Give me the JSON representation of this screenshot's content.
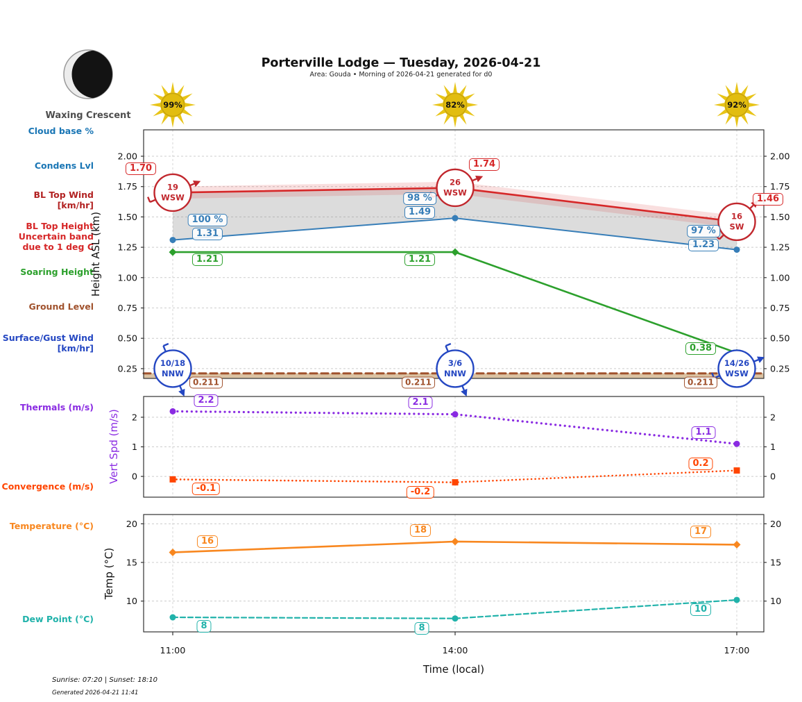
{
  "header": {
    "title": "Porterville Lodge — Tuesday, 2026-04-21",
    "subtitle": "Area: Gouda • Morning of 2026-04-21 generated for d0"
  },
  "moon": {
    "label": "Waxing Crescent"
  },
  "axes": {
    "height_label": "Height ASL (km)",
    "vert_label": "Vert Spd (m/s)",
    "temp_label": "Temp (°C)",
    "time_label": "Time (local)"
  },
  "footer": {
    "sun_times": "Sunrise: 07:20 | Sunset: 18:10",
    "generated": "Generated 2026-04-21 11:41"
  },
  "colors": {
    "condens_blue": "#377eb8",
    "bl_red": "#d62728",
    "bl_wind_red": "#c1272d",
    "dark_red_label": "#b22222",
    "green": "#2ca02c",
    "brown": "#a0522d",
    "ground_tan": "rgba(210,180,140,0.8)",
    "surface_wind_blue": "#2447c2",
    "purple": "#8a2be2",
    "orangered": "#ff4500",
    "orange": "#f8871f",
    "teal": "#20b2aa",
    "sun_gold": "#e8c417",
    "grid": "#cccccc"
  },
  "sidebar_labels": [
    {
      "id": "cloud-base-pct",
      "text": "Cloud base %",
      "color": "#1a76b5"
    },
    {
      "id": "condens-lvl",
      "text": "Condens Lvl",
      "color": "#1a76b5"
    },
    {
      "id": "bl-top-wind",
      "text": "BL Top Wind\n[km/hr]",
      "color": "#b22222"
    },
    {
      "id": "bl-top-height",
      "text": "BL Top Height\nUncertain band\ndue to 1 deg C",
      "color": "#d62728"
    },
    {
      "id": "soaring-height",
      "text": "Soaring Height",
      "color": "#2ca02c"
    },
    {
      "id": "ground-level",
      "text": "Ground Level",
      "color": "#a0522d"
    },
    {
      "id": "surface-gust-wind",
      "text": "Surface/Gust Wind\n[km/hr]",
      "color": "#2447c2"
    },
    {
      "id": "thermals",
      "text": "Thermals (m/s)",
      "color": "#8a2be2"
    },
    {
      "id": "convergence",
      "text": "Convergence (m/s)",
      "color": "#ff4500"
    },
    {
      "id": "temperature",
      "text": "Temperature (°C)",
      "color": "#f8871f"
    },
    {
      "id": "dew-point",
      "text": "Dew Point (°C)",
      "color": "#20b2aa"
    }
  ],
  "chart_data": [
    {
      "id": "height-panel",
      "type": "line",
      "x": [
        "11:00",
        "14:00",
        "17:00"
      ],
      "ylabel": "Height ASL (km)",
      "yticks": [
        "2.00",
        "1.75",
        "1.50",
        "1.25",
        "1.00",
        "0.75",
        "0.50",
        "0.25"
      ],
      "grid": true,
      "series": [
        {
          "name": "BL Top Height",
          "color": "#d62728",
          "line": "solid",
          "marker": "none",
          "width": 2.6,
          "values": [
            1.7,
            1.74,
            1.46
          ],
          "point_labels": [
            "1.70",
            "1.74",
            "1.46"
          ],
          "label_offsets": [
            [
              -46,
              -34
            ],
            [
              42,
              -33
            ],
            [
              45,
              -32
            ]
          ],
          "uncertainty_band": 0.05,
          "band_color": "rgba(214,39,40,0.15)"
        },
        {
          "name": "Condens Lvl",
          "color": "#377eb8",
          "line": "solid",
          "marker": "circle",
          "width": 2.0,
          "values": [
            1.31,
            1.49,
            1.23
          ],
          "point_labels": [
            "1.31",
            "1.49",
            "1.23"
          ],
          "label_offsets": [
            [
              50,
              -9
            ],
            [
              -51,
              -8
            ],
            [
              -48,
              -7
            ]
          ],
          "pct_labels": [
            "100 %",
            "98 %",
            "97 %"
          ],
          "pct_offsets": [
            [
              50,
              -29
            ],
            [
              -51,
              -28
            ],
            [
              -48,
              -27
            ]
          ]
        },
        {
          "name": "Soaring Height",
          "color": "#2ca02c",
          "line": "solid",
          "marker": "diamond",
          "width": 2.6,
          "values": [
            1.21,
            1.21,
            0.38
          ],
          "point_labels": [
            "1.21",
            "1.21",
            "0.38"
          ],
          "label_offsets": [
            [
              50,
              11
            ],
            [
              -51,
              11
            ],
            [
              -52,
              -6
            ]
          ]
        },
        {
          "name": "Ground Level",
          "color": "#a0522d",
          "line": "dashed",
          "marker": "none",
          "width": 3.0,
          "values": [
            0.211,
            0.211,
            0.211
          ],
          "full_width": true,
          "fill_below": "rgba(210,180,140,0.8)",
          "point_labels": [
            "0.211",
            "0.211",
            "0.211"
          ],
          "label_offsets": [
            [
              48,
              13
            ],
            [
              -53,
              13
            ],
            [
              -52,
              13
            ]
          ],
          "small_labels": true
        }
      ],
      "fill_between": {
        "upper": "BL Top Height",
        "lower": "Condens Lvl",
        "color": "rgba(128,128,128,0.28)"
      },
      "wind_markers": [
        {
          "name": "BL Top Wind [km/hr]",
          "color": "#c1272d",
          "anchor_values": [
            1.7,
            1.74,
            1.46
          ],
          "points": [
            {
              "speed": "19",
              "dir": "WSW"
            },
            {
              "speed": "26",
              "dir": "WSW"
            },
            {
              "speed": "16",
              "dir": "SW"
            }
          ]
        },
        {
          "name": "Surface/Gust Wind [km/hr]",
          "color": "#2447c2",
          "anchor_values": [
            0.25,
            0.25,
            0.25
          ],
          "points": [
            {
              "speed": "10/18",
              "dir": "NNW"
            },
            {
              "speed": "3/6",
              "dir": "NNW"
            },
            {
              "speed": "14/26",
              "dir": "WSW"
            }
          ]
        }
      ],
      "sun_icons": {
        "color": "#e8c417",
        "labels": [
          "99%",
          "82%",
          "92%"
        ]
      }
    },
    {
      "id": "vertspd-panel",
      "type": "line",
      "x": [
        "11:00",
        "14:00",
        "17:00"
      ],
      "ylabel": "Vert Spd (m/s)",
      "yticks": [
        "2",
        "1",
        "0"
      ],
      "grid": true,
      "series": [
        {
          "name": "Thermals",
          "color": "#8a2be2",
          "line": "dotted",
          "marker": "circle",
          "width": 3.2,
          "values": [
            2.2,
            2.1,
            1.1
          ],
          "point_labels": [
            "2.2",
            "2.1",
            "1.1"
          ],
          "label_offsets": [
            [
              48,
              -15
            ],
            [
              -50,
              -17
            ],
            [
              -48,
              -16
            ]
          ]
        },
        {
          "name": "Convergence",
          "color": "#ff4500",
          "line": "dotted",
          "marker": "square",
          "width": 2.6,
          "values": [
            -0.1,
            -0.2,
            0.2
          ],
          "point_labels": [
            "-0.1",
            "-0.2",
            "0.2"
          ],
          "label_offsets": [
            [
              48,
              14
            ],
            [
              -50,
              14
            ],
            [
              -52,
              -10
            ]
          ]
        }
      ]
    },
    {
      "id": "temp-panel",
      "type": "line",
      "x": [
        "11:00",
        "14:00",
        "17:00"
      ],
      "ylabel": "Temp (°C)",
      "yticks": [
        "20",
        "15",
        "10"
      ],
      "grid": true,
      "series": [
        {
          "name": "Temperature",
          "color": "#f8871f",
          "line": "solid",
          "marker": "diamond",
          "width": 2.6,
          "values": [
            16,
            18,
            17
          ],
          "plot_values": [
            16.3,
            17.7,
            17.3
          ],
          "point_labels": [
            "16",
            "18",
            "17"
          ],
          "label_offsets": [
            [
              50,
              -16
            ],
            [
              -50,
              -16
            ],
            [
              -52,
              -18
            ]
          ]
        },
        {
          "name": "Dew Point",
          "color": "#20b2aa",
          "line": "dashed",
          "marker": "circle",
          "width": 2.2,
          "values": [
            8,
            8,
            10
          ],
          "plot_values": [
            7.9,
            7.75,
            10.15
          ],
          "point_labels": [
            "8",
            "8",
            "10"
          ],
          "label_offsets": [
            [
              45,
              13
            ],
            [
              -48,
              14
            ],
            [
              -52,
              14
            ]
          ]
        }
      ]
    }
  ]
}
